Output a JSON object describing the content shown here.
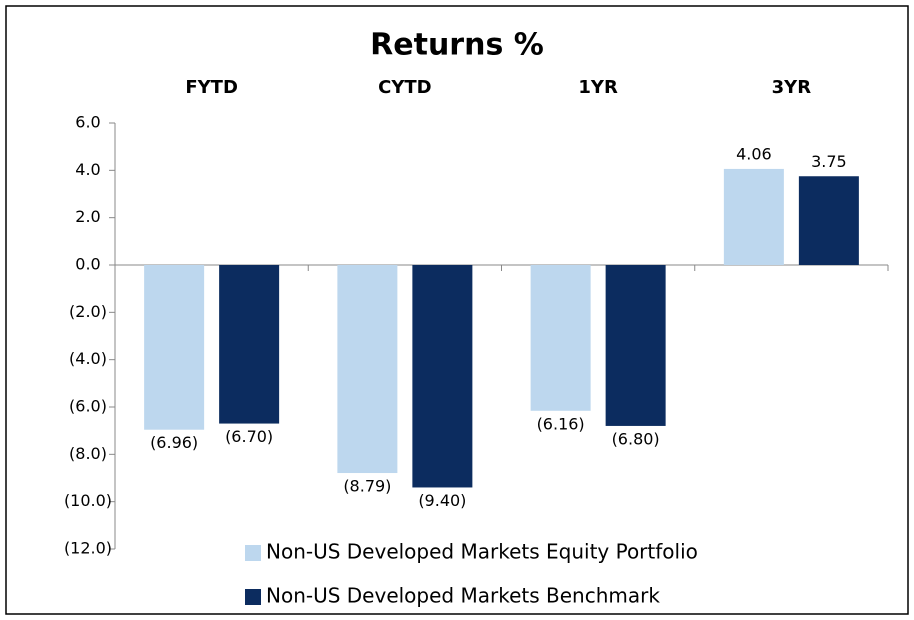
{
  "chart_data": {
    "type": "bar",
    "title": "Returns %",
    "categories": [
      "FYTD",
      "CYTD",
      "1YR",
      "3YR"
    ],
    "series": [
      {
        "name": "Non-US Developed Markets Equity Portfolio",
        "color": "#bdd7ee",
        "values": [
          -6.96,
          -8.79,
          -6.16,
          4.06
        ],
        "value_labels": [
          "(6.96)",
          "(8.79)",
          "(6.16)",
          "4.06"
        ]
      },
      {
        "name": "Non-US Developed Markets Benchmark",
        "color": "#0c2c5f",
        "values": [
          -6.7,
          -9.4,
          -6.8,
          3.75
        ],
        "value_labels": [
          "(6.70)",
          "(9.40)",
          "(6.80)",
          "3.75"
        ]
      }
    ],
    "ylim": [
      -12,
      6
    ],
    "yticks": [
      {
        "value": 6,
        "label": "6.0"
      },
      {
        "value": 4,
        "label": "4.0"
      },
      {
        "value": 2,
        "label": "2.0"
      },
      {
        "value": 0,
        "label": "0.0"
      },
      {
        "value": -2,
        "label": "(2.0)"
      },
      {
        "value": -4,
        "label": "(4.0)"
      },
      {
        "value": -6,
        "label": "(6.0)"
      },
      {
        "value": -8,
        "label": "(8.0)"
      },
      {
        "value": -10,
        "label": "(10.0)"
      },
      {
        "value": -12,
        "label": "(12.0)"
      }
    ],
    "negative_color": "#ff0000",
    "legend": "bottom"
  }
}
